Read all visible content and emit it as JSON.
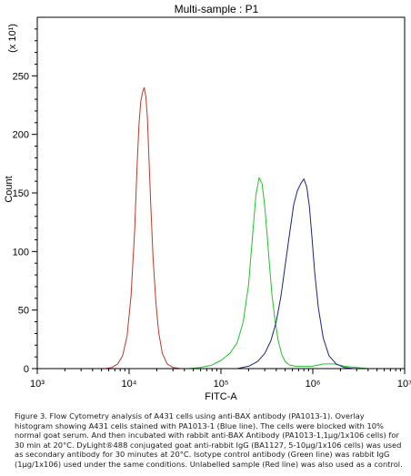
{
  "chart_data": {
    "type": "line",
    "title": "Multi-sample : P1",
    "xlabel": "FITC-A",
    "ylabel": "Count",
    "y_multiplier": "(x 10¹)",
    "x_scale": "log",
    "xlim": [
      1000,
      10000000
    ],
    "ylim": [
      0,
      300
    ],
    "x_ticks": [
      {
        "value": 1000,
        "label": "10³"
      },
      {
        "value": 10000,
        "label": "10⁴"
      },
      {
        "value": 100000,
        "label": "10⁵"
      },
      {
        "value": 1000000,
        "label": "10⁶"
      },
      {
        "value": 10000000,
        "label": "10⁷"
      }
    ],
    "y_ticks": [
      0,
      50,
      100,
      150,
      200,
      250
    ],
    "grid": false,
    "series": [
      {
        "color": "#c0392b",
        "x": [
          5500,
          6500,
          7500,
          8500,
          9500,
          10500,
          11500,
          12200,
          12800,
          13400,
          14000,
          14600,
          15200,
          15800,
          16400,
          17200,
          18200,
          19500,
          21000,
          23000,
          26000,
          30000,
          36000,
          45000
        ],
        "y": [
          0,
          1,
          4,
          11,
          28,
          62,
          118,
          172,
          208,
          228,
          236,
          240,
          232,
          214,
          182,
          140,
          95,
          58,
          31,
          13,
          4,
          1,
          0,
          0
        ]
      },
      {
        "color": "#22c22c",
        "x": [
          45000,
          60000,
          80000,
          100000,
          125000,
          150000,
          175000,
          200000,
          220000,
          240000,
          260000,
          280000,
          300000,
          320000,
          340000,
          360000,
          390000,
          420000,
          460000,
          500000,
          560000,
          650000,
          800000,
          1000000,
          1300000,
          1700000,
          2200000,
          3000000,
          4000000
        ],
        "y": [
          0,
          1,
          3,
          7,
          13,
          22,
          40,
          72,
          112,
          148,
          163,
          158,
          138,
          112,
          85,
          62,
          40,
          24,
          12,
          6,
          3,
          2,
          2,
          2,
          4,
          4,
          2,
          1,
          0
        ]
      },
      {
        "color": "#1a237e",
        "x": [
          150000,
          200000,
          250000,
          300000,
          350000,
          400000,
          450000,
          500000,
          560000,
          620000,
          680000,
          740000,
          800000,
          860000,
          920000,
          980000,
          1050000,
          1150000,
          1300000,
          1500000,
          1800000,
          2200000,
          2800000,
          3500000
        ],
        "y": [
          0,
          2,
          6,
          13,
          24,
          40,
          62,
          88,
          116,
          140,
          152,
          158,
          162,
          155,
          138,
          112,
          82,
          52,
          26,
          11,
          4,
          1,
          0,
          0
        ]
      }
    ]
  },
  "caption": "Figure 3. Flow Cytometry analysis of A431 cells using anti-BAX antibody (PA1013-1). Overlay histogram showing A431 cells stained with PA1013-1 (Blue line). The cells were blocked with 10% normal goat serum. And then incubated with rabbit anti-BAX Antibody (PA1013-1,1μg/1x106 cells) for 30 min at 20°C. DyLight®488 conjugated goat anti-rabbit IgG (BA1127, 5-10μg/1x106 cells) was used as secondary antibody for 30 minutes at 20°C. Isotype control antibody (Green line) was rabbit IgG (1μg/1x106) used under the same conditions. Unlabelled sample (Red line) was also used as a control."
}
